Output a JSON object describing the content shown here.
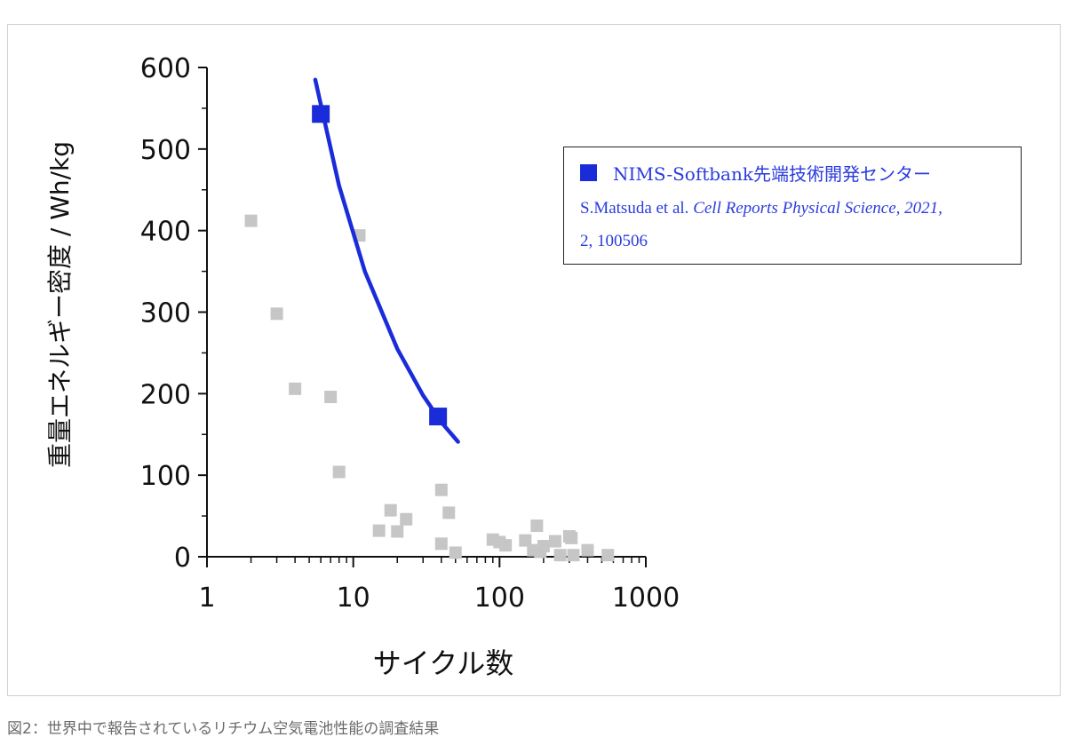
{
  "caption": "図2：世界中で報告されているリチウム空気電池性能の調査結果",
  "legend": {
    "series_name": "NIMS-Softbank先端技術開発センター",
    "ref_authors": "S.Matsuda et al. ",
    "ref_journal": "Cell Reports Physical Science, 2021,",
    "ref_volume": "2, 100506"
  },
  "colors": {
    "highlight": "#1a2cd9",
    "others": "#c6c6c6",
    "axis": "#111111"
  },
  "chart_data": {
    "type": "scatter",
    "xlabel": "サイクル数",
    "ylabel": "重量エネルギー密度 / Wh/kg",
    "xscale": "log",
    "xlim": [
      1,
      1000
    ],
    "ylim": [
      0,
      600
    ],
    "x_ticks": [
      "1",
      "10",
      "100",
      "1000"
    ],
    "y_ticks": [
      "0",
      "100",
      "200",
      "300",
      "400",
      "500",
      "600"
    ],
    "series": [
      {
        "name": "NIMS-Softbank先端技術開発センター",
        "points": [
          [
            6,
            543
          ],
          [
            38,
            172
          ]
        ],
        "trend_line": [
          [
            5.5,
            585
          ],
          [
            8,
            455
          ],
          [
            12,
            350
          ],
          [
            20,
            255
          ],
          [
            30,
            198
          ],
          [
            40,
            165
          ],
          [
            52,
            141
          ]
        ]
      },
      {
        "points": [
          [
            2,
            412
          ],
          [
            3,
            298
          ],
          [
            4,
            206
          ],
          [
            7,
            196
          ],
          [
            8,
            104
          ],
          [
            11,
            394
          ],
          [
            15,
            32
          ],
          [
            18,
            57
          ],
          [
            20,
            31
          ],
          [
            23,
            46
          ],
          [
            40,
            82
          ],
          [
            40,
            16
          ],
          [
            45,
            54
          ],
          [
            50,
            5
          ],
          [
            90,
            21
          ],
          [
            100,
            18
          ],
          [
            110,
            14
          ],
          [
            150,
            20
          ],
          [
            170,
            8
          ],
          [
            180,
            38
          ],
          [
            190,
            6
          ],
          [
            200,
            13
          ],
          [
            240,
            19
          ],
          [
            260,
            2
          ],
          [
            300,
            25
          ],
          [
            310,
            23
          ],
          [
            320,
            2
          ],
          [
            400,
            8
          ],
          [
            550,
            2
          ]
        ]
      }
    ]
  }
}
